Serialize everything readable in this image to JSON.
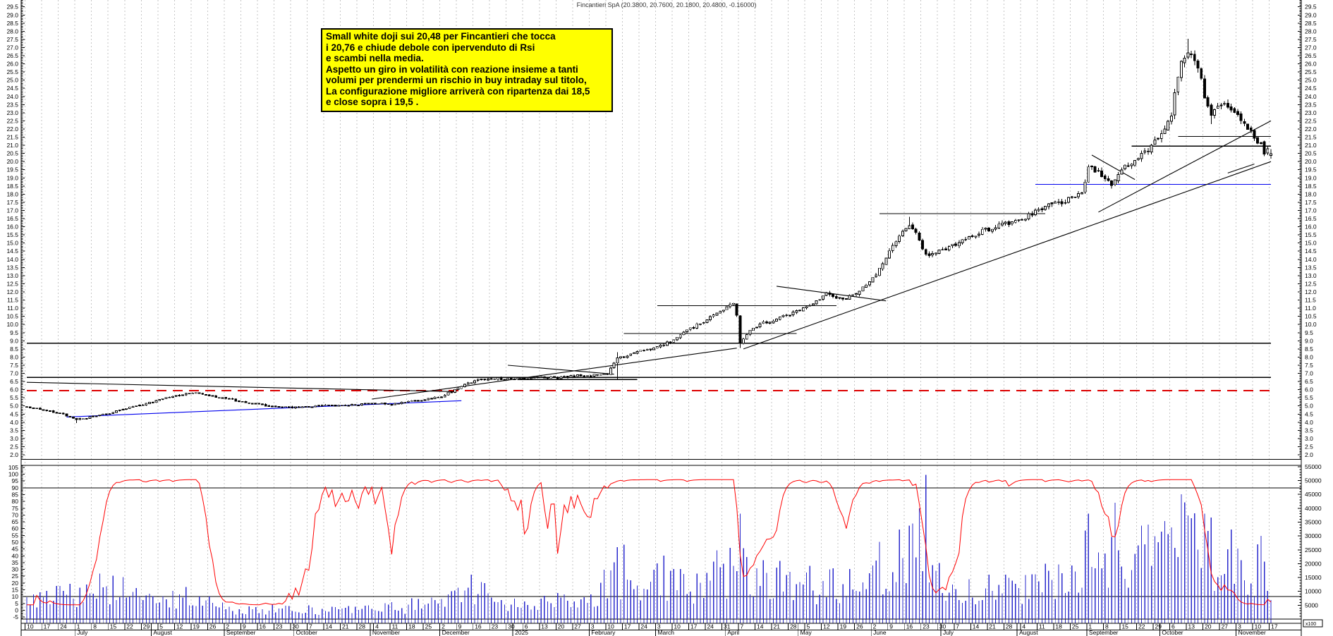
{
  "window": {
    "title": "Fincantieri SpA (20.3800, 20.7600, 20.1800, 20.4800, -0.16000)"
  },
  "note_box": {
    "bg_color": "#ffff00",
    "lines": [
      "Small white doji sui 20,48 per Fincantieri che tocca",
      "i 20,76 e chiude debole con ipervenduto di Rsi",
      "e scambi nella media.",
      "Aspetto un giro in volatilità con reazione insieme a tanti",
      "volumi per prendermi un rischio in buy intraday sul titolo,",
      "La configurazione migliore arriverà con ripartenza dai 18,5",
      "e close sopra i 19,5 ."
    ]
  },
  "chart_data": {
    "type": "candlestick",
    "instrument": "Fincantieri SpA",
    "last_candle": {
      "date": "2025-11-17",
      "open": 20.38,
      "high": 20.76,
      "low": 20.18,
      "close": 20.48,
      "change": -0.16
    },
    "start_date": "2024-06-10",
    "end_date": "2025-11-17",
    "price_axis": {
      "min": 1.72,
      "max": 29.92,
      "label_from": 2.0,
      "label_to": 29.5,
      "label_step": 0.5
    },
    "indicator_axis": {
      "min": -6.5,
      "max": 106.5,
      "label_from": -5,
      "label_to": 105,
      "label_step": 5
    },
    "volume_axis": {
      "label_from": 5000,
      "label_to": 55000,
      "label_step": 5000,
      "unit": "x100",
      "max": 55500
    },
    "months": [
      "July",
      "August",
      "September",
      "October",
      "November",
      "December",
      "2025",
      "February",
      "March",
      "April",
      "May",
      "June",
      "July",
      "August",
      "September",
      "October",
      "November"
    ],
    "close_keyframes": [
      [
        "2024-06-10",
        4.95
      ],
      [
        "2024-06-17",
        4.75
      ],
      [
        "2024-06-24",
        4.55
      ],
      [
        "2024-07-01",
        4.15
      ],
      [
        "2024-07-08",
        4.35
      ],
      [
        "2024-07-15",
        4.55
      ],
      [
        "2024-07-22",
        4.85
      ],
      [
        "2024-07-29",
        5.1
      ],
      [
        "2024-08-05",
        5.35
      ],
      [
        "2024-08-12",
        5.65
      ],
      [
        "2024-08-19",
        5.82
      ],
      [
        "2024-08-26",
        5.65
      ],
      [
        "2024-09-02",
        5.45
      ],
      [
        "2024-09-09",
        5.25
      ],
      [
        "2024-09-16",
        5.1
      ],
      [
        "2024-09-23",
        4.95
      ],
      [
        "2024-09-30",
        4.9
      ],
      [
        "2024-10-07",
        4.95
      ],
      [
        "2024-10-14",
        5.05
      ],
      [
        "2024-10-21",
        5.0
      ],
      [
        "2024-10-28",
        5.1
      ],
      [
        "2024-11-04",
        5.15
      ],
      [
        "2024-11-11",
        5.1
      ],
      [
        "2024-11-18",
        5.25
      ],
      [
        "2024-11-25",
        5.4
      ],
      [
        "2024-12-02",
        5.6
      ],
      [
        "2024-12-09",
        6.1
      ],
      [
        "2024-12-16",
        6.55
      ],
      [
        "2024-12-23",
        6.7
      ],
      [
        "2024-12-30",
        6.65
      ],
      [
        "2025-01-06",
        6.7
      ],
      [
        "2025-01-13",
        6.8
      ],
      [
        "2025-01-20",
        6.7
      ],
      [
        "2025-01-27",
        6.85
      ],
      [
        "2025-02-03",
        6.9
      ],
      [
        "2025-02-10",
        7.0
      ],
      [
        "2025-02-13",
        7.9
      ],
      [
        "2025-02-21",
        8.3
      ],
      [
        "2025-02-28",
        8.5
      ],
      [
        "2025-03-07",
        9.0
      ],
      [
        "2025-03-14",
        9.6
      ],
      [
        "2025-03-21",
        10.2
      ],
      [
        "2025-03-28",
        10.8
      ],
      [
        "2025-04-03",
        11.3
      ],
      [
        "2025-04-04",
        10.6
      ],
      [
        "2025-04-07",
        8.9
      ],
      [
        "2025-04-10",
        9.6
      ],
      [
        "2025-04-16",
        10.1
      ],
      [
        "2025-04-23",
        10.4
      ],
      [
        "2025-04-30",
        10.8
      ],
      [
        "2025-05-07",
        11.3
      ],
      [
        "2025-05-13",
        11.9
      ],
      [
        "2025-05-20",
        11.5
      ],
      [
        "2025-05-27",
        12.0
      ],
      [
        "2025-06-03",
        13.1
      ],
      [
        "2025-06-10",
        14.8
      ],
      [
        "2025-06-13",
        15.6
      ],
      [
        "2025-06-17",
        16.2
      ],
      [
        "2025-06-20",
        15.2
      ],
      [
        "2025-06-24",
        14.3
      ],
      [
        "2025-06-27",
        14.4
      ],
      [
        "2025-07-04",
        14.8
      ],
      [
        "2025-07-11",
        15.3
      ],
      [
        "2025-07-18",
        15.8
      ],
      [
        "2025-07-25",
        16.1
      ],
      [
        "2025-08-01",
        16.4
      ],
      [
        "2025-08-08",
        16.9
      ],
      [
        "2025-08-14",
        17.3
      ],
      [
        "2025-08-21",
        17.6
      ],
      [
        "2025-08-28",
        18.0
      ],
      [
        "2025-09-01",
        19.7
      ],
      [
        "2025-09-05",
        19.2
      ],
      [
        "2025-09-10",
        18.6
      ],
      [
        "2025-09-15",
        19.5
      ],
      [
        "2025-09-19",
        20.1
      ],
      [
        "2025-09-24",
        20.6
      ],
      [
        "2025-09-29",
        21.2
      ],
      [
        "2025-10-02",
        21.9
      ],
      [
        "2025-10-06",
        22.8
      ],
      [
        "2025-10-08",
        25.3
      ],
      [
        "2025-10-09",
        26.2
      ],
      [
        "2025-10-13",
        26.8
      ],
      [
        "2025-10-15",
        26.4
      ],
      [
        "2025-10-16",
        25.8
      ],
      [
        "2025-10-17",
        25.0
      ],
      [
        "2025-10-20",
        24.1
      ],
      [
        "2025-10-22",
        22.9
      ],
      [
        "2025-10-24",
        23.2
      ],
      [
        "2025-10-28",
        23.6
      ],
      [
        "2025-10-31",
        23.2
      ],
      [
        "2025-11-04",
        22.7
      ],
      [
        "2025-11-06",
        22.1
      ],
      [
        "2025-11-10",
        21.4
      ],
      [
        "2025-11-12",
        21.0
      ],
      [
        "2025-11-13",
        20.5
      ],
      [
        "2025-11-14",
        20.64
      ],
      [
        "2025-11-17",
        20.48
      ]
    ],
    "wick_overrides": {
      "2024-07-01": {
        "low": 3.95
      },
      "2025-02-13": {
        "low": 6.65,
        "high": 8.3
      },
      "2025-04-07": {
        "low": 8.55
      },
      "2025-06-17": {
        "high": 16.6
      },
      "2025-10-13": {
        "high": 27.55
      },
      "2025-10-22": {
        "low": 22.3
      }
    },
    "horizontal_lines": [
      {
        "from": "2024-06-10",
        "to": "2025-11-17",
        "price": 8.85,
        "color": "#000000",
        "dash": null
      },
      {
        "from": "2024-06-10",
        "to": "2025-11-17",
        "price": 6.75,
        "color": "#000000",
        "dash": null
      },
      {
        "from": "2024-06-10",
        "to": "2025-11-17",
        "price": 5.95,
        "color": "#dd0000",
        "dash": "14,9"
      },
      {
        "from": "2025-01-02",
        "to": "2025-02-21",
        "price": 6.62,
        "color": "#000000",
        "dash": null
      },
      {
        "from": "2025-02-17",
        "to": "2025-04-30",
        "price": 9.45,
        "color": "#000000",
        "dash": null
      },
      {
        "from": "2025-03-03",
        "to": "2025-05-16",
        "price": 11.15,
        "color": "#000000",
        "dash": null
      },
      {
        "from": "2025-06-04",
        "to": "2025-08-13",
        "price": 16.8,
        "color": "#000000",
        "dash": null
      },
      {
        "from": "2025-09-18",
        "to": "2025-11-17",
        "price": 20.95,
        "color": "#000000",
        "dash": null
      },
      {
        "from": "2025-10-08",
        "to": "2025-11-17",
        "price": 21.55,
        "color": "#000000",
        "dash": null
      },
      {
        "from": "2025-08-08",
        "to": "2025-11-17",
        "price": 18.6,
        "color": "#0000ee",
        "dash": null
      }
    ],
    "trend_lines": [
      {
        "d1": "2024-06-10",
        "p1": 6.45,
        "d2": "2024-12-06",
        "p2": 5.88,
        "color": "#000000"
      },
      {
        "d1": "2024-06-26",
        "p1": 4.32,
        "d2": "2024-12-10",
        "p2": 5.32,
        "color": "#0000ee"
      },
      {
        "d1": "2024-11-01",
        "p1": 5.42,
        "d2": "2025-04-04",
        "p2": 8.55,
        "color": "#000000"
      },
      {
        "d1": "2024-12-30",
        "p1": 7.5,
        "d2": "2025-02-12",
        "p2": 6.95,
        "color": "#000000"
      },
      {
        "d1": "2025-04-08",
        "p1": 8.5,
        "d2": "2025-11-17",
        "p2": 20.0,
        "color": "#000000"
      },
      {
        "d1": "2025-09-04",
        "p1": 16.9,
        "d2": "2025-11-17",
        "p2": 22.5,
        "color": "#000000"
      },
      {
        "d1": "2025-09-02",
        "p1": 20.4,
        "d2": "2025-09-19",
        "p2": 18.9,
        "color": "#000000"
      },
      {
        "d1": "2025-10-29",
        "p1": 19.3,
        "d2": "2025-11-10",
        "p2": 19.85,
        "color": "#000000"
      },
      {
        "d1": "2025-04-22",
        "p1": 12.35,
        "d2": "2025-06-06",
        "p2": 11.45,
        "color": "#000000"
      }
    ],
    "indicator_panel": {
      "indicator": {
        "type": "fast-stochastic-of-close",
        "period": 14,
        "smooth": 2,
        "color": "#ff0000"
      },
      "reference_lines": [
        90,
        10
      ],
      "volume_color": "#2929cc",
      "volume_envelope_keyframes": [
        [
          "2024-06-10",
          6000
        ],
        [
          "2024-07-01",
          9000
        ],
        [
          "2024-07-15",
          12000
        ],
        [
          "2024-08-01",
          6000
        ],
        [
          "2024-08-15",
          8000
        ],
        [
          "2024-09-02",
          4000
        ],
        [
          "2024-10-01",
          3200
        ],
        [
          "2024-11-01",
          3800
        ],
        [
          "2024-12-02",
          6000
        ],
        [
          "2024-12-13",
          12000
        ],
        [
          "2025-01-02",
          6000
        ],
        [
          "2025-02-03",
          7000
        ],
        [
          "2025-02-13",
          18000
        ],
        [
          "2025-03-03",
          16000
        ],
        [
          "2025-03-17",
          14000
        ],
        [
          "2025-04-04",
          20000
        ],
        [
          "2025-04-07",
          30000
        ],
        [
          "2025-04-14",
          16000
        ],
        [
          "2025-05-05",
          13000
        ],
        [
          "2025-05-26",
          15000
        ],
        [
          "2025-06-09",
          20000
        ],
        [
          "2025-06-17",
          24000
        ],
        [
          "2025-07-07",
          12000
        ],
        [
          "2025-08-04",
          13000
        ],
        [
          "2025-09-01",
          22000
        ],
        [
          "2025-09-15",
          20000
        ],
        [
          "2025-10-06",
          26000
        ],
        [
          "2025-10-13",
          30000
        ],
        [
          "2025-10-27",
          22000
        ],
        [
          "2025-11-10",
          20000
        ],
        [
          "2025-11-17",
          15000
        ]
      ],
      "volume_spikes": {
        "2024-12-13": 16000,
        "2025-02-13": 26000,
        "2025-04-07": 38000,
        "2025-06-20": 40000,
        "2025-06-24": 52000,
        "2025-09-01": 38000,
        "2025-09-11": 42000,
        "2025-10-09": 45000,
        "2025-10-20": 38000,
        "2025-11-12": 30000
      }
    }
  }
}
